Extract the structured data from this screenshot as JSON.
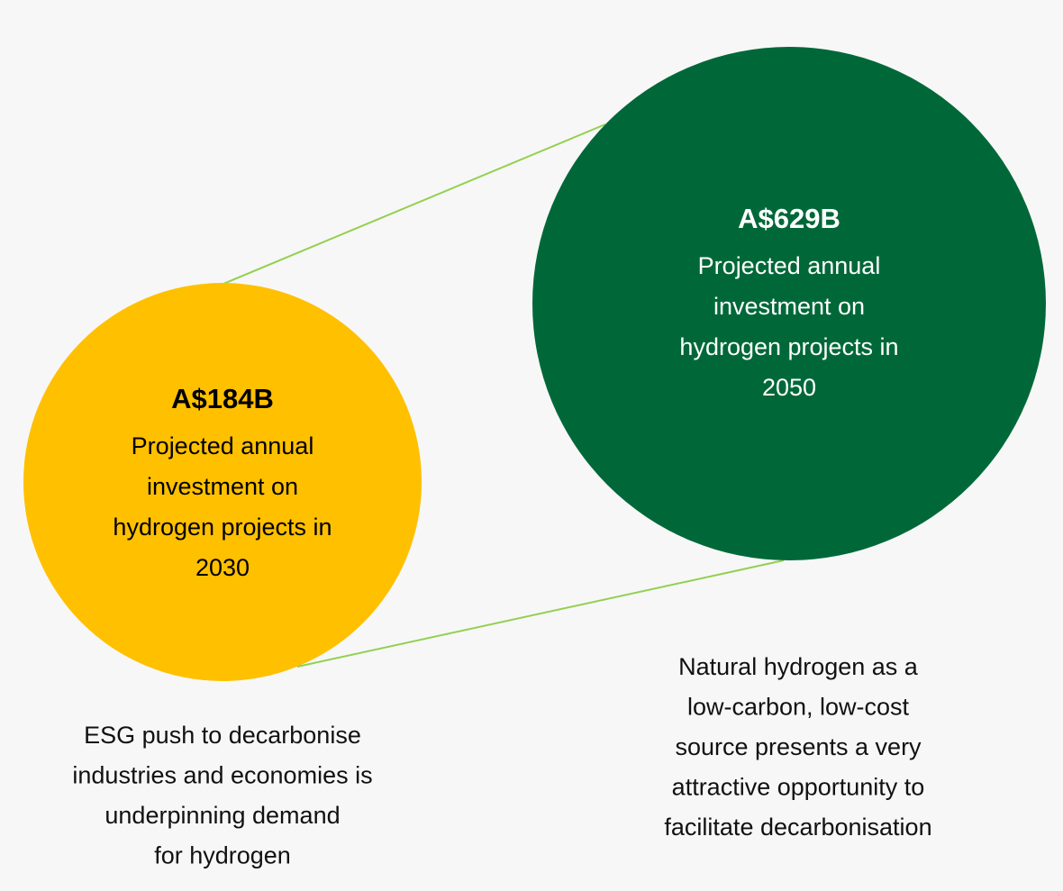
{
  "circles": [
    {
      "value": "A$184B",
      "lines": [
        "Projected annual",
        "investment on",
        "hydrogen projects in",
        "2030"
      ]
    },
    {
      "value": "A$629B",
      "lines": [
        "Projected annual",
        "investment on",
        "hydrogen projects in",
        "2050"
      ]
    }
  ],
  "captions": [
    {
      "lines": [
        "ESG push to decarbonise",
        "industries and economies is",
        "underpinning demand",
        "for hydrogen"
      ]
    },
    {
      "lines": [
        "Natural hydrogen as a",
        "low-carbon, low-cost",
        "source presents a very",
        "attractive opportunity to",
        "facilitate decarbonisation"
      ]
    }
  ]
}
